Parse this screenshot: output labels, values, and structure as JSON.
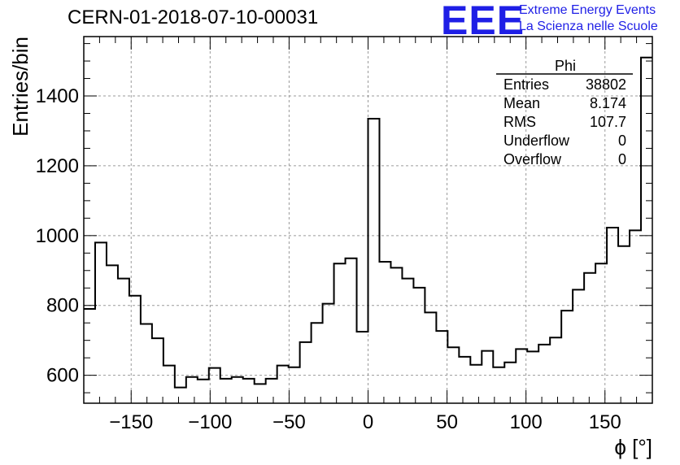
{
  "header": {
    "title": "CERN-01-2018-07-10-00031",
    "logo_text": "EEE",
    "logo_line1": "Extreme Energy Events",
    "logo_line2": "La Scienza nelle Scuole",
    "logo_color": "#1f1fe6"
  },
  "stats_box": {
    "title": "Phi",
    "rows": [
      {
        "label": "Entries",
        "value": "38802"
      },
      {
        "label": "Mean",
        "value": "8.174"
      },
      {
        "label": "RMS",
        "value": "107.7"
      },
      {
        "label": "Underflow",
        "value": "0"
      },
      {
        "label": "Overflow",
        "value": "0"
      }
    ]
  },
  "chart_data": {
    "type": "histogram",
    "title": "CERN-01-2018-07-10-00031",
    "xlabel": "ϕ [°]",
    "ylabel": "Entries/bin",
    "xlim": [
      -180,
      180
    ],
    "ylim": [
      520,
      1570
    ],
    "bin_edges_start": -180,
    "bin_width": 7.2,
    "values": [
      790,
      980,
      915,
      877,
      828,
      747,
      706,
      628,
      565,
      595,
      588,
      621,
      590,
      595,
      590,
      575,
      590,
      628,
      623,
      695,
      750,
      805,
      920,
      935,
      725,
      1335,
      925,
      908,
      877,
      851,
      780,
      727,
      680,
      653,
      630,
      670,
      623,
      637,
      675,
      668,
      688,
      708,
      785,
      845,
      893,
      920,
      1023,
      970,
      1015,
      1510
    ],
    "x_ticks": [
      -150,
      -100,
      -50,
      0,
      50,
      100,
      150
    ],
    "x_tick_labels": [
      "−150",
      "−100",
      "−50",
      "0",
      "50",
      "100",
      "150"
    ],
    "y_ticks": [
      600,
      800,
      1000,
      1200,
      1400
    ],
    "y_tick_labels": [
      "600",
      "800",
      "1000",
      "1200",
      "1400"
    ],
    "grid": true,
    "line_color": "#000000"
  }
}
